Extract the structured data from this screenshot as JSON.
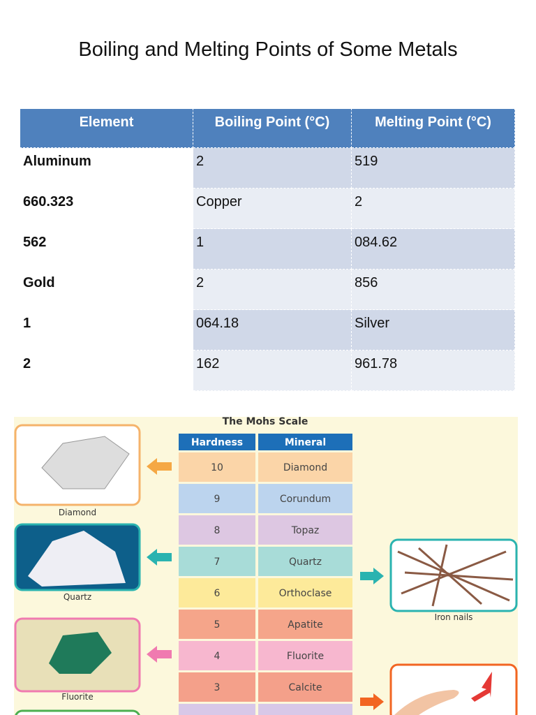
{
  "title": "Boiling and Melting Points of Some Metals",
  "table": {
    "header": [
      "Element",
      "Boiling Point (°C)",
      "Melting Point (°C)"
    ],
    "rows": [
      [
        "Aluminum",
        "2",
        "519"
      ],
      [
        "660.323",
        "Copper",
        "2"
      ],
      [
        "562",
        "1",
        "084.62"
      ],
      [
        "Gold",
        "2",
        "856"
      ],
      [
        "1",
        "064.18",
        "Silver"
      ],
      [
        "2",
        "162",
        "961.78"
      ]
    ]
  },
  "mohs": {
    "title": "The Mohs Scale",
    "header": [
      "Hardness",
      "Mineral"
    ],
    "rows": [
      [
        "10",
        "Diamond"
      ],
      [
        "9",
        "Corundum"
      ],
      [
        "8",
        "Topaz"
      ],
      [
        "7",
        "Quartz"
      ],
      [
        "6",
        "Orthoclase"
      ],
      [
        "5",
        "Apatite"
      ],
      [
        "4",
        "Fluorite"
      ],
      [
        "3",
        "Calcite"
      ]
    ],
    "captions": [
      "Diamond",
      "Quartz",
      "Fluorite",
      "Iron nails"
    ]
  }
}
